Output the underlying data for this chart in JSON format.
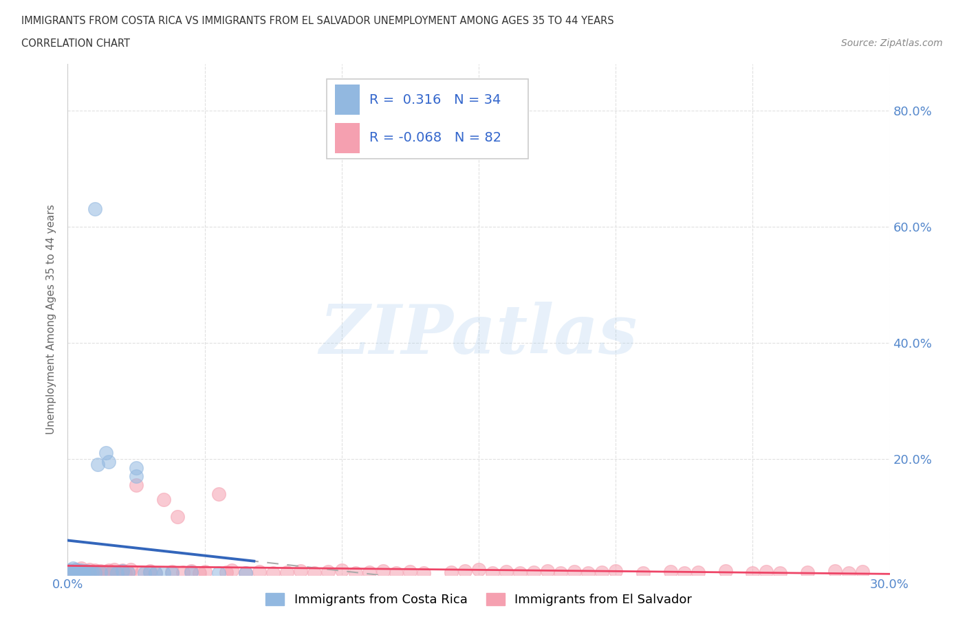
{
  "title_line1": "IMMIGRANTS FROM COSTA RICA VS IMMIGRANTS FROM EL SALVADOR UNEMPLOYMENT AMONG AGES 35 TO 44 YEARS",
  "title_line2": "CORRELATION CHART",
  "source_text": "Source: ZipAtlas.com",
  "ylabel": "Unemployment Among Ages 35 to 44 years",
  "xlim": [
    0.0,
    0.3
  ],
  "ylim": [
    0.0,
    0.88
  ],
  "xtick_positions": [
    0.0,
    0.05,
    0.1,
    0.15,
    0.2,
    0.25,
    0.3
  ],
  "xticklabels": [
    "0.0%",
    "",
    "",
    "",
    "",
    "",
    "30.0%"
  ],
  "ytick_positions": [
    0.0,
    0.2,
    0.4,
    0.6,
    0.8
  ],
  "yticklabels": [
    "",
    "20.0%",
    "40.0%",
    "60.0%",
    "80.0%"
  ],
  "costa_rica_color": "#92B8E0",
  "el_salvador_color": "#F5A0B0",
  "costa_rica_trend_color": "#3366BB",
  "el_salvador_trend_color": "#EE4466",
  "dashed_line_color": "#AAAAAA",
  "costa_rica_R": 0.316,
  "costa_rica_N": 34,
  "el_salvador_R": -0.068,
  "el_salvador_N": 82,
  "legend_label_1": "Immigrants from Costa Rica",
  "legend_label_2": "Immigrants from El Salvador",
  "watermark": "ZIPatlas",
  "background_color": "#ffffff",
  "tick_color": "#5588CC",
  "ylabel_color": "#666666",
  "title_color": "#333333",
  "source_color": "#888888"
}
